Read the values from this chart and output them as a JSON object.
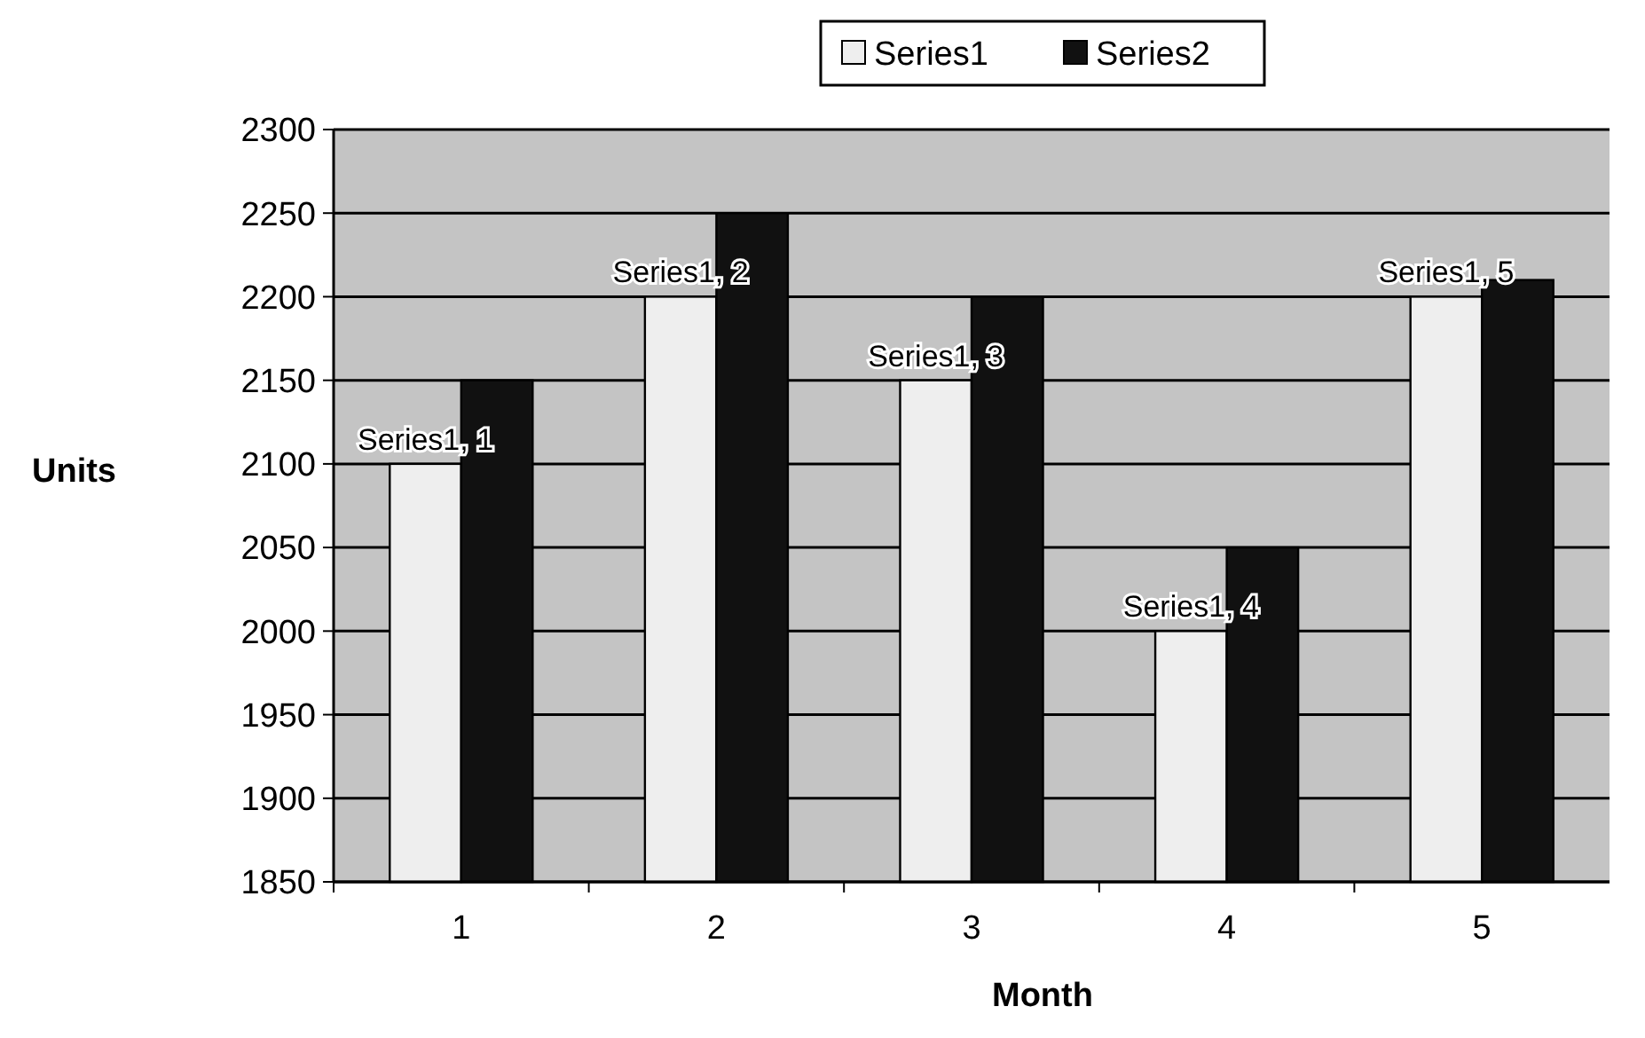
{
  "chart_data": {
    "type": "bar",
    "xlabel": "Month",
    "ylabel": "Units",
    "categories": [
      "1",
      "2",
      "3",
      "4",
      "5"
    ],
    "series": [
      {
        "name": "Series1",
        "color": "#eeeeee",
        "values": [
          2100,
          2200,
          2150,
          2000,
          2200
        ],
        "value_labels": [
          "Series1, 1",
          "Series1, 2",
          "Series1, 3",
          "Series1, 4",
          "Series1, 5"
        ]
      },
      {
        "name": "Series2",
        "color": "#111111",
        "values": [
          2150,
          2250,
          2200,
          2050,
          2210
        ]
      }
    ],
    "ylim": [
      1850,
      2300
    ],
    "yticks": [
      1850,
      1900,
      1950,
      2000,
      2050,
      2100,
      2150,
      2200,
      2250,
      2300
    ],
    "grid": "y",
    "legend": "top"
  }
}
